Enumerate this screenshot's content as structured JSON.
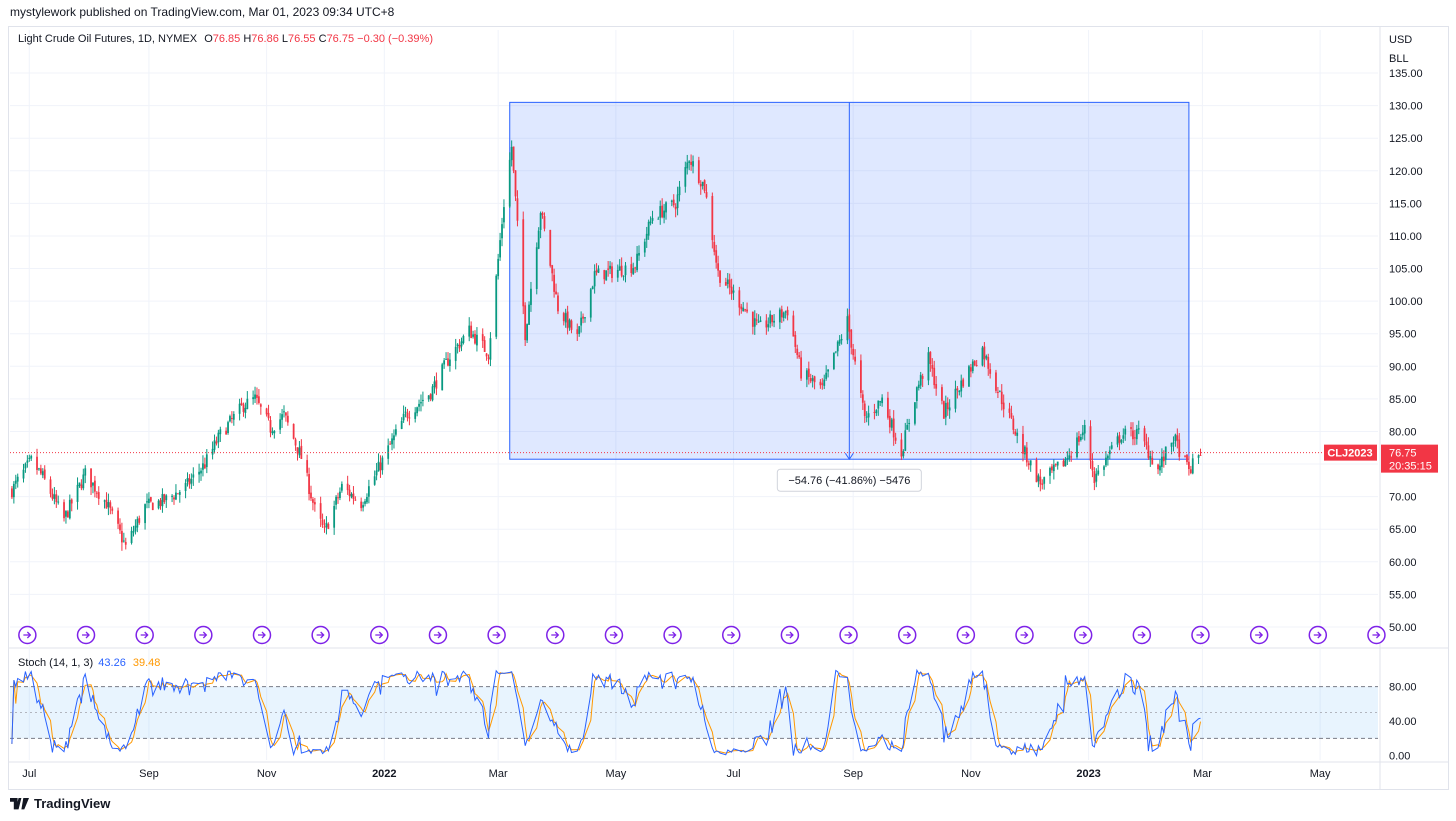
{
  "header": {
    "published_text": "mystylework published on TradingView.com, Mar 01, 2023 09:34 UTC+8"
  },
  "legend": {
    "symbol": "Light Crude Oil Futures, 1D, NYMEX",
    "open_label": "O",
    "open": "76.85",
    "high_label": "H",
    "high": "76.86",
    "low_label": "L",
    "low": "76.55",
    "close_label": "C",
    "close": "76.75",
    "change": "−0.30 (−0.39%)"
  },
  "price_axis": {
    "currency": "USD",
    "unit": "BLL",
    "ticks": [
      "135.00",
      "130.00",
      "125.00",
      "120.00",
      "115.00",
      "110.00",
      "105.00",
      "100.00",
      "95.00",
      "90.00",
      "85.00",
      "80.00",
      "75.00",
      "70.00",
      "65.00",
      "60.00",
      "55.00",
      "50.00"
    ]
  },
  "badges": {
    "symbol": "CLJ2023",
    "price": "76.75",
    "countdown": "20:35:15"
  },
  "measure": {
    "label": "−54.76 (−41.86%) −5476"
  },
  "stoch": {
    "title": "Stoch (14, 1, 3)",
    "k_value": "43.26",
    "d_value": "39.48",
    "ticks": [
      "80.00",
      "40.00",
      "0.00"
    ]
  },
  "time_axis": {
    "labels": [
      "Jul",
      "Sep",
      "Nov",
      "2022",
      "Mar",
      "May",
      "Jul",
      "Sep",
      "Nov",
      "2023",
      "Mar",
      "May"
    ]
  },
  "footer": {
    "brand": "TradingView"
  },
  "colors": {
    "up": "#089981",
    "down": "#f23645",
    "measure": "#2962ff",
    "stoch_k": "#2962ff",
    "stoch_d": "#ff9800",
    "event": "#7e22e8"
  },
  "chart_data": {
    "type": "candlestick",
    "title": "Light Crude Oil Futures, 1D, NYMEX",
    "ylim": [
      48,
      137
    ],
    "x_labels": [
      "Jul",
      "Sep",
      "Nov",
      "2022",
      "Mar",
      "May",
      "Jul",
      "Sep",
      "Nov",
      "2023",
      "Mar",
      "May"
    ],
    "close_series": [
      [
        "2021-06-22",
        71.0
      ],
      [
        "2021-07-02",
        75.5
      ],
      [
        "2021-07-08",
        73.0
      ],
      [
        "2021-07-19",
        66.5
      ],
      [
        "2021-07-30",
        73.5
      ],
      [
        "2021-08-10",
        69.0
      ],
      [
        "2021-08-20",
        62.3
      ],
      [
        "2021-08-30",
        68.5
      ],
      [
        "2021-09-10",
        69.5
      ],
      [
        "2021-09-20",
        71.5
      ],
      [
        "2021-09-30",
        75.0
      ],
      [
        "2021-10-08",
        79.5
      ],
      [
        "2021-10-20",
        84.0
      ],
      [
        "2021-10-26",
        85.0
      ],
      [
        "2021-11-03",
        80.5
      ],
      [
        "2021-11-10",
        82.5
      ],
      [
        "2021-11-19",
        76.0
      ],
      [
        "2021-11-26",
        68.0
      ],
      [
        "2021-12-01",
        64.5
      ],
      [
        "2021-12-10",
        71.5
      ],
      [
        "2021-12-20",
        69.0
      ],
      [
        "2021-12-31",
        75.5
      ],
      [
        "2022-01-12",
        82.5
      ],
      [
        "2022-01-25",
        86.0
      ],
      [
        "2022-02-04",
        91.5
      ],
      [
        "2022-02-14",
        95.5
      ],
      [
        "2022-02-24",
        92.0
      ],
      [
        "2022-03-04",
        115.0
      ],
      [
        "2022-03-08",
        123.7
      ],
      [
        "2022-03-15",
        95.0
      ],
      [
        "2022-03-23",
        114.0
      ],
      [
        "2022-04-01",
        99.0
      ],
      [
        "2022-04-11",
        94.3
      ],
      [
        "2022-04-20",
        104.0
      ],
      [
        "2022-04-29",
        104.5
      ],
      [
        "2022-05-11",
        105.5
      ],
      [
        "2022-05-20",
        113.0
      ],
      [
        "2022-06-01",
        115.0
      ],
      [
        "2022-06-08",
        122.1
      ],
      [
        "2022-06-16",
        117.5
      ],
      [
        "2022-06-23",
        104.3
      ],
      [
        "2022-07-05",
        99.5
      ],
      [
        "2022-07-14",
        95.8
      ],
      [
        "2022-07-29",
        98.6
      ],
      [
        "2022-08-05",
        89.0
      ],
      [
        "2022-08-16",
        86.5
      ],
      [
        "2022-08-29",
        97.0
      ],
      [
        "2022-09-07",
        81.9
      ],
      [
        "2022-09-16",
        85.0
      ],
      [
        "2022-09-26",
        76.8
      ],
      [
        "2022-10-04",
        86.5
      ],
      [
        "2022-10-10",
        91.1
      ],
      [
        "2022-10-18",
        82.8
      ],
      [
        "2022-10-28",
        87.9
      ],
      [
        "2022-11-07",
        92.6
      ],
      [
        "2022-11-16",
        85.6
      ],
      [
        "2022-11-28",
        77.2
      ],
      [
        "2022-12-07",
        72.0
      ],
      [
        "2022-12-19",
        75.2
      ],
      [
        "2022-12-30",
        80.3
      ],
      [
        "2023-01-04",
        72.8
      ],
      [
        "2023-01-18",
        79.5
      ],
      [
        "2023-01-27",
        79.7
      ],
      [
        "2023-02-06",
        74.1
      ],
      [
        "2023-02-14",
        79.1
      ],
      [
        "2023-02-22",
        73.9
      ],
      [
        "2023-02-28",
        76.75
      ]
    ],
    "measure_range": {
      "high": 130.5,
      "low": 75.74,
      "change": -54.76,
      "change_pct": -41.86,
      "ticks": -5476
    },
    "stochastic": {
      "period": [
        14,
        1,
        3
      ],
      "k_last": 43.26,
      "d_last": 39.48,
      "levels": [
        80,
        20
      ],
      "ylim": [
        -5,
        105
      ]
    }
  }
}
